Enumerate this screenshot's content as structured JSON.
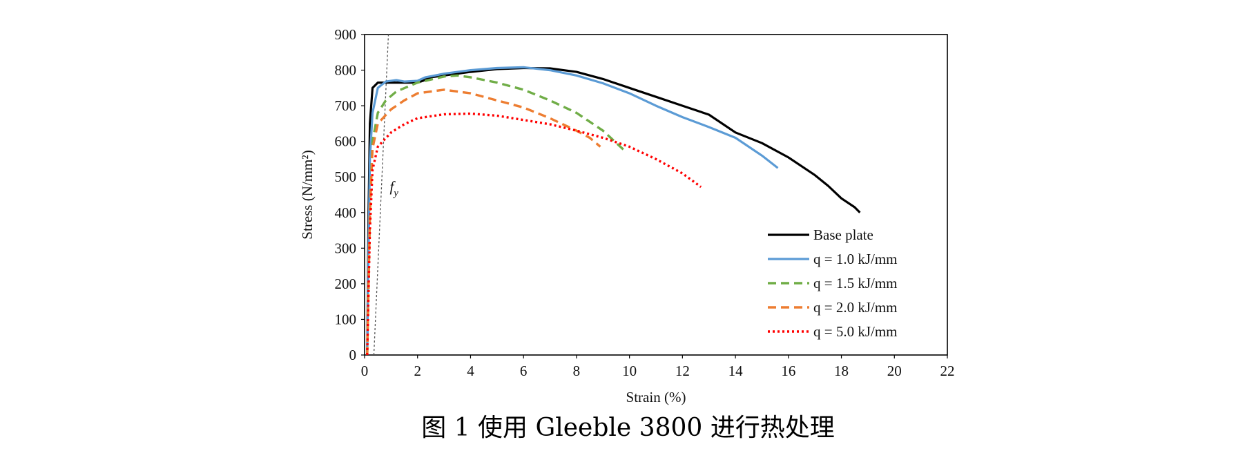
{
  "caption": "图 1 使用 Gleeble 3800 进行热处理",
  "chart_data": {
    "type": "line",
    "xlabel": "Strain (%)",
    "ylabel": "Stress (N/mm²)",
    "xlim": [
      0,
      22
    ],
    "ylim": [
      0,
      900
    ],
    "xticks": [
      0,
      2,
      4,
      6,
      8,
      10,
      12,
      14,
      16,
      18,
      20,
      22
    ],
    "yticks": [
      0,
      100,
      200,
      300,
      400,
      500,
      600,
      700,
      800,
      900
    ],
    "grid": false,
    "legend_position": "bottom-right",
    "annotation": {
      "text": "f",
      "subscript": "y",
      "x": 0.95,
      "y": 450
    },
    "reference_line": {
      "points": [
        [
          0.35,
          0
        ],
        [
          0.9,
          900
        ]
      ],
      "color": "#555555"
    },
    "series": [
      {
        "name": "Base plate",
        "color": "#000000",
        "dash": "solid",
        "points": [
          [
            0.1,
            0
          ],
          [
            0.15,
            400
          ],
          [
            0.2,
            650
          ],
          [
            0.3,
            750
          ],
          [
            0.5,
            765
          ],
          [
            0.5,
            765
          ],
          [
            1.0,
            765
          ],
          [
            2.0,
            765
          ],
          [
            2.2,
            770
          ],
          [
            2.5,
            780
          ],
          [
            3,
            785
          ],
          [
            4,
            795
          ],
          [
            5,
            803
          ],
          [
            6,
            806
          ],
          [
            7,
            805
          ],
          [
            7.7,
            798
          ],
          [
            8,
            795
          ],
          [
            9,
            775
          ],
          [
            10,
            750
          ],
          [
            11,
            725
          ],
          [
            12,
            700
          ],
          [
            13,
            675
          ],
          [
            14,
            625
          ],
          [
            15,
            595
          ],
          [
            16,
            555
          ],
          [
            17,
            505
          ],
          [
            17.5,
            475
          ],
          [
            18,
            440
          ],
          [
            18.5,
            415
          ],
          [
            18.7,
            400
          ]
        ]
      },
      {
        "name": "q = 1.0 kJ/mm",
        "color": "#5b9bd5",
        "dash": "solid",
        "points": [
          [
            0.1,
            0
          ],
          [
            0.15,
            300
          ],
          [
            0.2,
            550
          ],
          [
            0.3,
            680
          ],
          [
            0.5,
            750
          ],
          [
            0.8,
            768
          ],
          [
            1.2,
            772
          ],
          [
            1.5,
            768
          ],
          [
            2.0,
            770
          ],
          [
            2.3,
            780
          ],
          [
            3,
            790
          ],
          [
            4,
            800
          ],
          [
            5,
            806
          ],
          [
            6,
            808
          ],
          [
            7,
            800
          ],
          [
            8,
            785
          ],
          [
            9,
            763
          ],
          [
            10,
            735
          ],
          [
            11,
            700
          ],
          [
            12,
            668
          ],
          [
            13,
            640
          ],
          [
            14,
            610
          ],
          [
            15,
            560
          ],
          [
            15.6,
            525
          ]
        ]
      },
      {
        "name": "q = 1.5 kJ/mm",
        "color": "#70ad47",
        "dash": "dashed",
        "points": [
          [
            0.1,
            0
          ],
          [
            0.2,
            400
          ],
          [
            0.3,
            600
          ],
          [
            0.5,
            680
          ],
          [
            0.8,
            715
          ],
          [
            1.2,
            740
          ],
          [
            2,
            765
          ],
          [
            3,
            782
          ],
          [
            3.5,
            785
          ],
          [
            4,
            780
          ],
          [
            5,
            765
          ],
          [
            6,
            745
          ],
          [
            7,
            715
          ],
          [
            8,
            680
          ],
          [
            9,
            630
          ],
          [
            9.8,
            575
          ]
        ]
      },
      {
        "name": "q = 2.0 kJ/mm",
        "color": "#ed7d31",
        "dash": "dashed",
        "points": [
          [
            0.1,
            0
          ],
          [
            0.2,
            400
          ],
          [
            0.3,
            580
          ],
          [
            0.5,
            650
          ],
          [
            1,
            690
          ],
          [
            1.5,
            715
          ],
          [
            2,
            735
          ],
          [
            3,
            745
          ],
          [
            4,
            735
          ],
          [
            5,
            715
          ],
          [
            6,
            695
          ],
          [
            7,
            665
          ],
          [
            8,
            630
          ],
          [
            8.5,
            610
          ],
          [
            8.9,
            585
          ]
        ]
      },
      {
        "name": "q = 5.0 kJ/mm",
        "color": "#ff0000",
        "dash": "dotted",
        "points": [
          [
            0.1,
            0
          ],
          [
            0.2,
            350
          ],
          [
            0.3,
            520
          ],
          [
            0.5,
            585
          ],
          [
            1,
            625
          ],
          [
            1.5,
            648
          ],
          [
            2,
            665
          ],
          [
            3,
            676
          ],
          [
            4,
            678
          ],
          [
            5,
            672
          ],
          [
            6,
            660
          ],
          [
            7,
            648
          ],
          [
            8,
            630
          ],
          [
            9,
            610
          ],
          [
            10,
            585
          ],
          [
            11,
            550
          ],
          [
            12,
            510
          ],
          [
            12.7,
            472
          ]
        ]
      }
    ]
  }
}
